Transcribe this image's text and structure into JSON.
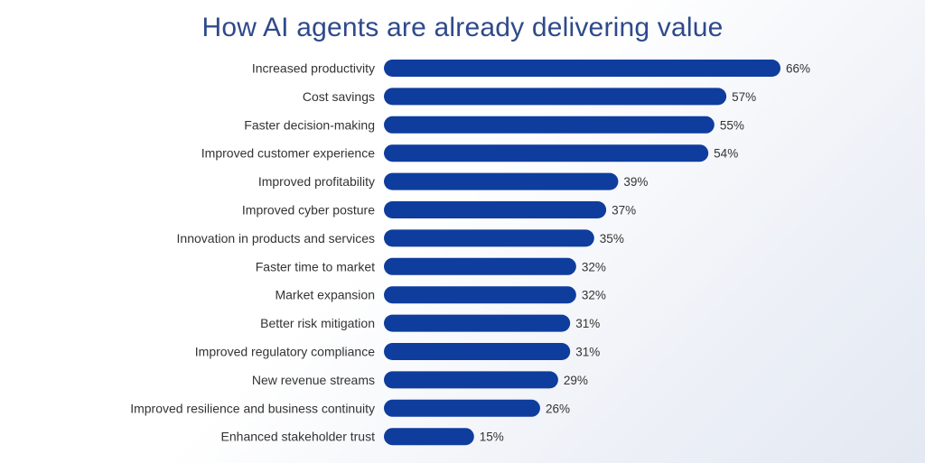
{
  "chart_data": {
    "type": "bar",
    "orientation": "horizontal",
    "title": "How AI agents are already delivering value",
    "categories": [
      "Increased productivity",
      "Cost savings",
      "Faster decision-making",
      "Improved customer experience",
      "Improved profitability",
      "Improved cyber posture",
      "Innovation in products and services",
      "Faster time to market",
      "Market expansion",
      "Better risk mitigation",
      "Improved regulatory compliance",
      "New revenue streams",
      "Improved resilience and business continuity",
      "Enhanced stakeholder trust"
    ],
    "values": [
      66,
      57,
      55,
      54,
      39,
      37,
      35,
      32,
      32,
      31,
      31,
      29,
      26,
      15
    ],
    "value_labels": [
      "66%",
      "57%",
      "55%",
      "54%",
      "39%",
      "37%",
      "35%",
      "32%",
      "32%",
      "31%",
      "31%",
      "29%",
      "26%",
      "15%"
    ],
    "xlim": [
      0,
      66
    ],
    "grid": false,
    "legend": "none",
    "bar_color": "#0f3d9e",
    "title_color": "#2e4a8a"
  }
}
